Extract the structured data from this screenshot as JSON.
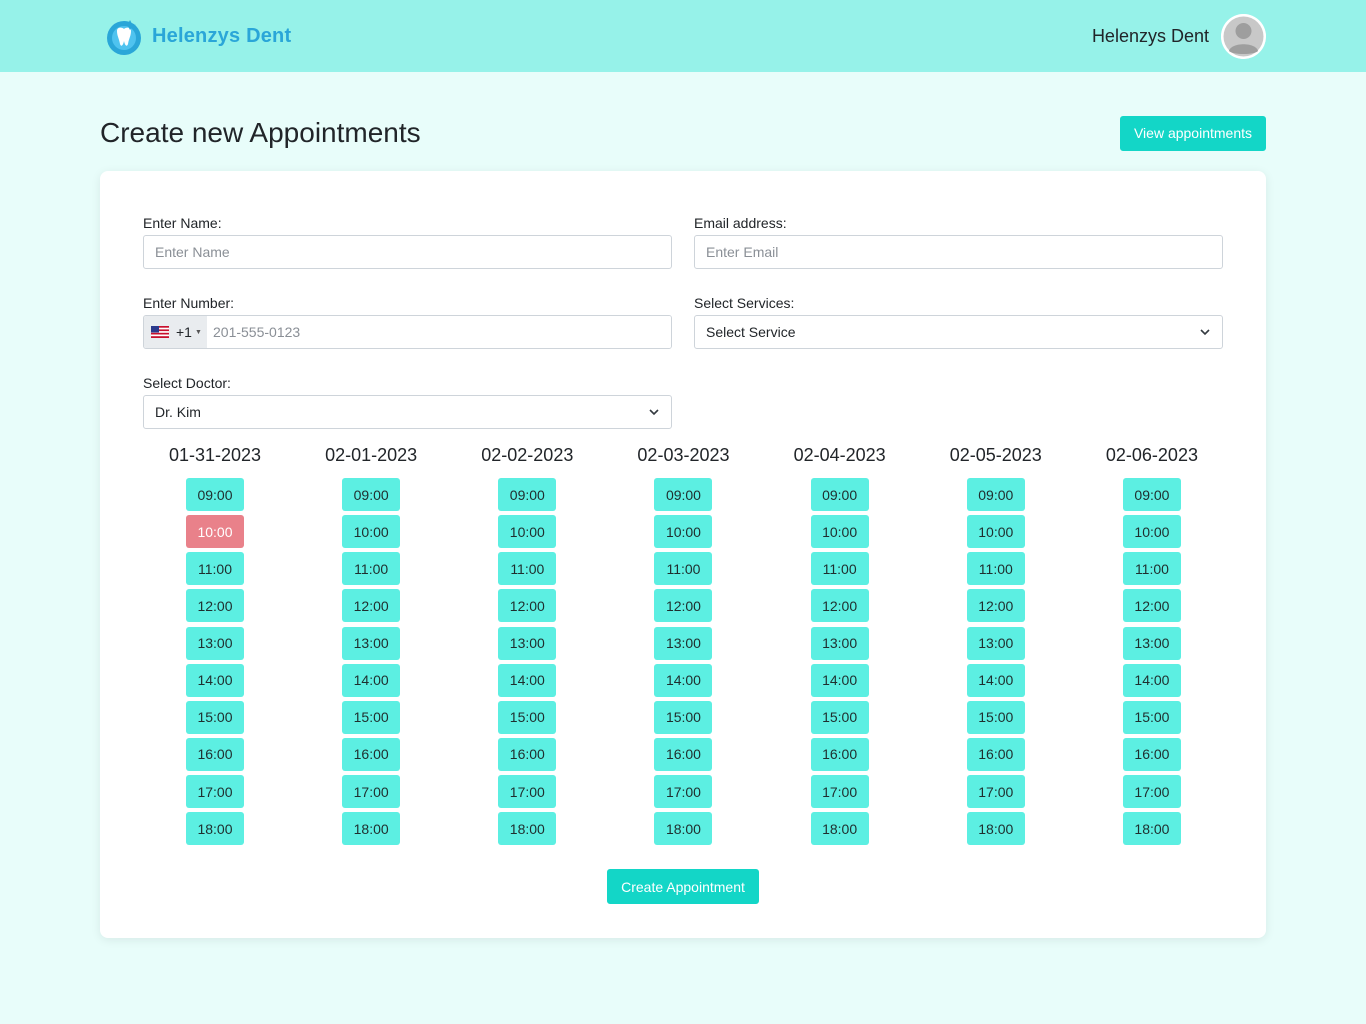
{
  "navbar": {
    "brand_name": "Helenzys Dent",
    "user_name": "Helenzys Dent"
  },
  "header": {
    "title": "Create new Appointments",
    "view_button": "View appointments"
  },
  "form": {
    "name": {
      "label": "Enter Name:",
      "placeholder": "Enter Name"
    },
    "email": {
      "label": "Email address:",
      "placeholder": "Enter Email"
    },
    "number": {
      "label": "Enter Number:",
      "dial_code": "+1",
      "placeholder": "201-555-0123"
    },
    "services": {
      "label": "Select Services:",
      "value": "Select Service"
    },
    "doctor": {
      "label": "Select Doctor:",
      "value": "Dr. Kim"
    }
  },
  "schedule": {
    "days": [
      {
        "date": "01-31-2023",
        "slots": [
          "09:00",
          "10:00",
          "11:00",
          "12:00",
          "13:00",
          "14:00",
          "15:00",
          "16:00",
          "17:00",
          "18:00"
        ],
        "booked": [
          "10:00"
        ]
      },
      {
        "date": "02-01-2023",
        "slots": [
          "09:00",
          "10:00",
          "11:00",
          "12:00",
          "13:00",
          "14:00",
          "15:00",
          "16:00",
          "17:00",
          "18:00"
        ],
        "booked": []
      },
      {
        "date": "02-02-2023",
        "slots": [
          "09:00",
          "10:00",
          "11:00",
          "12:00",
          "13:00",
          "14:00",
          "15:00",
          "16:00",
          "17:00",
          "18:00"
        ],
        "booked": []
      },
      {
        "date": "02-03-2023",
        "slots": [
          "09:00",
          "10:00",
          "11:00",
          "12:00",
          "13:00",
          "14:00",
          "15:00",
          "16:00",
          "17:00",
          "18:00"
        ],
        "booked": []
      },
      {
        "date": "02-04-2023",
        "slots": [
          "09:00",
          "10:00",
          "11:00",
          "12:00",
          "13:00",
          "14:00",
          "15:00",
          "16:00",
          "17:00",
          "18:00"
        ],
        "booked": []
      },
      {
        "date": "02-05-2023",
        "slots": [
          "09:00",
          "10:00",
          "11:00",
          "12:00",
          "13:00",
          "14:00",
          "15:00",
          "16:00",
          "17:00",
          "18:00"
        ],
        "booked": []
      },
      {
        "date": "02-06-2023",
        "slots": [
          "09:00",
          "10:00",
          "11:00",
          "12:00",
          "13:00",
          "14:00",
          "15:00",
          "16:00",
          "17:00",
          "18:00"
        ],
        "booked": []
      }
    ]
  },
  "actions": {
    "create_button": "Create Appointment"
  },
  "colors": {
    "navbar_bg": "#96f2e9",
    "page_bg": "#e8fdfa",
    "accent": "#13d6c7",
    "slot_available": "#5cefe2",
    "slot_booked": "#e9818a",
    "brand_text": "#2aa6d8"
  },
  "icons": {
    "logo": "tooth-logo-icon",
    "avatar": "user-avatar-icon",
    "flag": "us-flag-icon",
    "dropdown": "chevron-down-icon"
  }
}
